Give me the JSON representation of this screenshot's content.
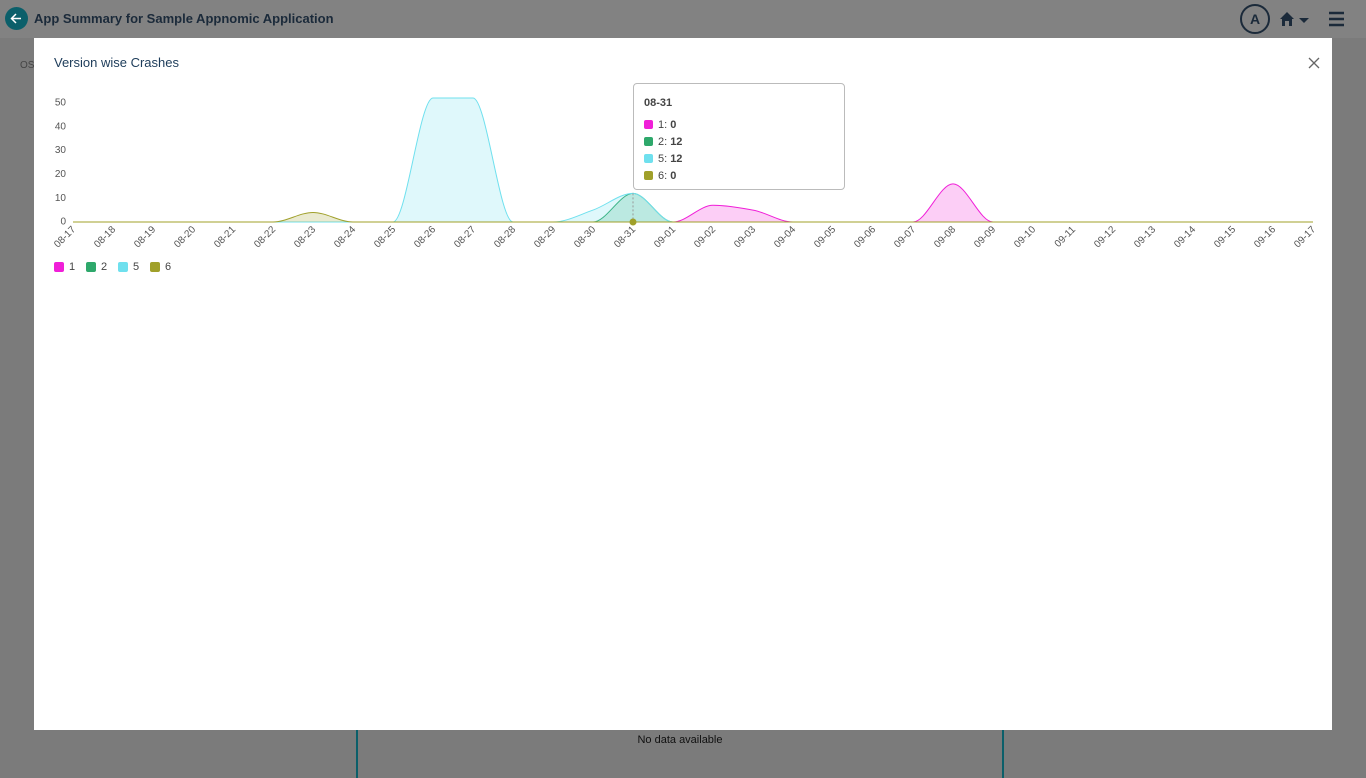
{
  "header": {
    "title": "App Summary for Sample Appnomic Application",
    "avatar": "A"
  },
  "background": {
    "filter_label": "OS",
    "empty_message": "No data available"
  },
  "modal": {
    "title": "Version wise Crashes"
  },
  "chart_data": {
    "type": "area",
    "categories": [
      "08-17",
      "08-18",
      "08-19",
      "08-20",
      "08-21",
      "08-22",
      "08-23",
      "08-24",
      "08-25",
      "08-26",
      "08-27",
      "08-28",
      "08-29",
      "08-30",
      "08-31",
      "09-01",
      "09-02",
      "09-03",
      "09-04",
      "09-05",
      "09-06",
      "09-07",
      "09-08",
      "09-09",
      "09-10",
      "09-11",
      "09-12",
      "09-13",
      "09-14",
      "09-15",
      "09-16",
      "09-17"
    ],
    "series": [
      {
        "name": "1",
        "color": "#f01fd8",
        "values": [
          0,
          0,
          0,
          0,
          0,
          0,
          0,
          0,
          0,
          0,
          0,
          0,
          0,
          0,
          0,
          0,
          7,
          5,
          0,
          0,
          0,
          0,
          16,
          0,
          0,
          0,
          0,
          0,
          0,
          0,
          0,
          0
        ]
      },
      {
        "name": "2",
        "color": "#2ea86b",
        "values": [
          0,
          0,
          0,
          0,
          0,
          0,
          0,
          0,
          0,
          0,
          0,
          0,
          0,
          0,
          12,
          0,
          0,
          0,
          0,
          0,
          0,
          0,
          0,
          0,
          0,
          0,
          0,
          0,
          0,
          0,
          0,
          0
        ]
      },
      {
        "name": "5",
        "color": "#6fe0ee",
        "values": [
          0,
          0,
          0,
          0,
          0,
          0,
          0,
          0,
          0,
          52,
          52,
          0,
          0,
          5,
          12,
          0,
          0,
          0,
          0,
          0,
          0,
          0,
          0,
          0,
          0,
          0,
          0,
          0,
          0,
          0,
          0,
          0
        ]
      },
      {
        "name": "6",
        "color": "#a0a02a",
        "values": [
          0,
          0,
          0,
          0,
          0,
          0,
          4,
          0,
          0,
          0,
          0,
          0,
          0,
          0,
          0,
          0,
          0,
          0,
          0,
          0,
          0,
          0,
          0,
          0,
          0,
          0,
          0,
          0,
          0,
          0,
          0,
          0
        ]
      }
    ],
    "ylim": [
      0,
      52
    ],
    "yticks": [
      0,
      10,
      20,
      30,
      40,
      50
    ],
    "grid": false,
    "legend": "bottom"
  }
}
